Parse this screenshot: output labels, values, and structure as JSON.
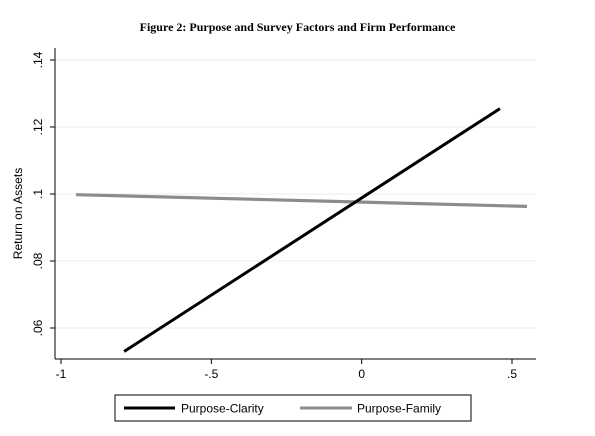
{
  "chart_data": {
    "type": "line",
    "title": "Figure 2: Purpose and Survey Factors and Firm Performance",
    "xlabel": "",
    "ylabel": "Return on Assets",
    "xlim": [
      -1,
      0.55
    ],
    "ylim": [
      0.05,
      0.14
    ],
    "x_ticks": [
      -1,
      -0.5,
      0,
      0.5
    ],
    "x_tick_labels": [
      "-1",
      "-.5",
      "0",
      ".5"
    ],
    "y_ticks": [
      0.06,
      0.08,
      0.1,
      0.12,
      0.14
    ],
    "y_tick_labels": [
      ".06",
      ".08",
      ".1",
      ".12",
      ".14"
    ],
    "grid": "horizontal",
    "legend_position": "bottom",
    "series": [
      {
        "name": "Purpose-Clarity",
        "color": "#000000",
        "x": [
          -0.79,
          0.46
        ],
        "y": [
          0.053,
          0.1255
        ]
      },
      {
        "name": "Purpose-Family",
        "color": "#8c8c8c",
        "x": [
          -0.95,
          0.55
        ],
        "y": [
          0.0998,
          0.0963
        ]
      }
    ]
  }
}
